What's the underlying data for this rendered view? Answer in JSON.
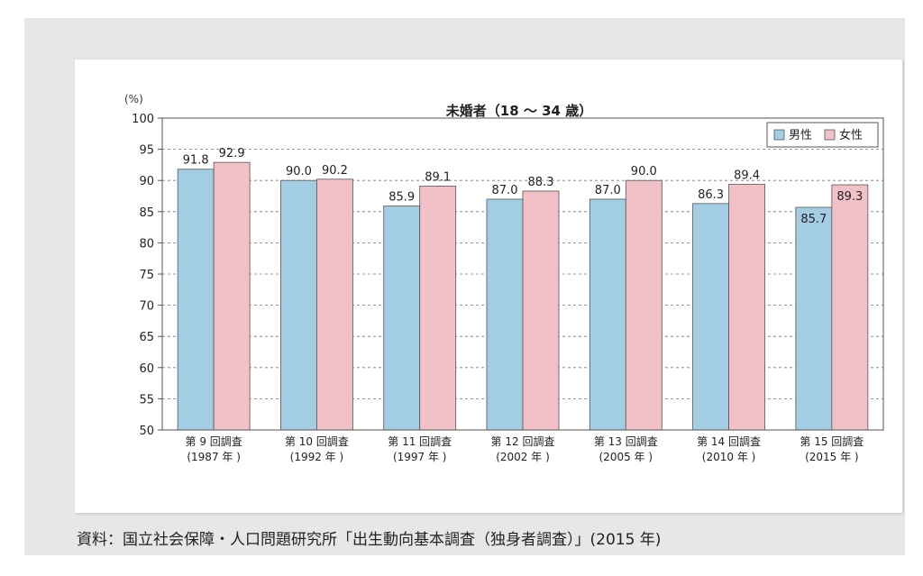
{
  "chart_data": {
    "type": "bar",
    "title": "未婚者（18 ～ 34 歳）",
    "ylabel": "(%)",
    "ylim": [
      50,
      100
    ],
    "yticks": [
      "50",
      "55",
      "60",
      "65",
      "70",
      "75",
      "80",
      "85",
      "90",
      "95",
      "100"
    ],
    "grid": true,
    "legend_position": "top-right",
    "categories": [
      {
        "line1": "第 9 回調査",
        "line2": "(1987 年 )"
      },
      {
        "line1": "第 10 回調査",
        "line2": "(1992 年 )"
      },
      {
        "line1": "第 11 回調査",
        "line2": "(1997 年 )"
      },
      {
        "line1": "第 12 回調査",
        "line2": "(2002 年 )"
      },
      {
        "line1": "第 13 回調査",
        "line2": "(2005 年 )"
      },
      {
        "line1": "第 14 回調査",
        "line2": "(2010 年 )"
      },
      {
        "line1": "第 15 回調査",
        "line2": "(2015 年 )"
      }
    ],
    "series": [
      {
        "name": "男性",
        "color": "#a3cde3",
        "values": [
          91.8,
          90.0,
          85.9,
          87.0,
          87.0,
          86.3,
          85.7
        ],
        "labels": [
          "91.8",
          "90.0",
          "85.9",
          "87.0",
          "87.0",
          "86.3",
          "85.7"
        ]
      },
      {
        "name": "女性",
        "color": "#f2c1c8",
        "values": [
          92.9,
          90.2,
          89.1,
          88.3,
          90.0,
          89.4,
          89.3
        ],
        "labels": [
          "92.9",
          "90.2",
          "89.1",
          "88.3",
          "90.0",
          "89.4",
          "89.3"
        ]
      }
    ]
  },
  "source": "資料：国立社会保障・人口問題研究所「出生動向基本調査（独身者調査）」(2015 年)"
}
